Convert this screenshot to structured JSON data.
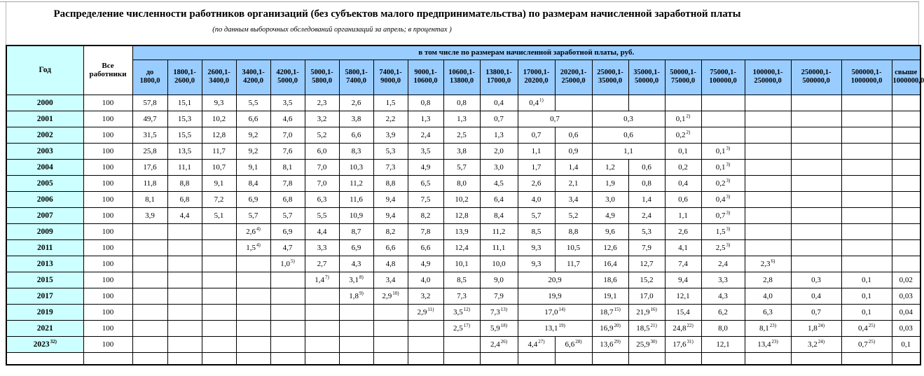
{
  "title": "Распределение численности работников организаций (без субъектов малого предпринимательства) по размерам начисленной заработной платы",
  "subtitle": "(по данным выборочных обследований организаций за апрель; в процентах )",
  "table": {
    "year_header": "Год",
    "all_workers_header": "Все\nработники",
    "group_header": "в том числе по размерам начисленной заработной платы, руб.",
    "wage_columns": [
      "до\n1800,0",
      "1800,1-\n2600,0",
      "2600,1-\n3400,0",
      "3400,1-\n4200,0",
      "4200,1-\n5000,0",
      "5000,1-\n5800,0",
      "5800,1-\n7400,0",
      "7400,1-\n9000,0",
      "9000,1-\n10600,0",
      "10600,1-\n13800,0",
      "13800,1-\n17000,0",
      "17000,1-\n20200,0",
      "20200,1-\n25000,0",
      "25000,1-\n35000,0",
      "35000,1-\n50000,0",
      "50000,1-\n75000,0",
      "75000,1-\n100000,0",
      "100000,1-\n250000,0",
      "250000,1-\n500000,0",
      "500000,1-\n1000000,0",
      "свыше\n1000000,0"
    ],
    "rows": [
      {
        "year": "2000",
        "all": "100",
        "cells": [
          "57,8",
          "15,1",
          "9,3",
          "5,5",
          "3,5",
          "2,3",
          "2,6",
          "1,5",
          "0,8",
          "0,8",
          "0,4",
          {
            "v": "0,4",
            "f": "1)"
          },
          "",
          "",
          "",
          "",
          "",
          "",
          "",
          "",
          ""
        ]
      },
      {
        "year": "2001",
        "all": "100",
        "cells": [
          "49,7",
          "15,3",
          "10,2",
          "6,6",
          "4,6",
          "3,2",
          "3,8",
          "2,2",
          "1,3",
          "1,3",
          "0,7",
          {
            "v": "0,7",
            "span": 2
          },
          {
            "v": "0,3",
            "span": 2
          },
          {
            "v": "0,1",
            "f": "2)"
          },
          "",
          "",
          "",
          "",
          ""
        ]
      },
      {
        "year": "2002",
        "all": "100",
        "cells": [
          "31,5",
          "15,5",
          "12,8",
          "9,2",
          "7,0",
          "5,2",
          "6,6",
          "3,9",
          "2,4",
          "2,5",
          "1,3",
          "0,7",
          "0,6",
          {
            "v": "0,6",
            "span": 2
          },
          {
            "v": "0,2",
            "f": "2)"
          },
          "",
          "",
          "",
          "",
          ""
        ]
      },
      {
        "year": "2003",
        "all": "100",
        "cells": [
          "25,8",
          "13,5",
          "11,7",
          "9,2",
          "7,6",
          "6,0",
          "8,3",
          "5,3",
          "3,5",
          "3,8",
          "2,0",
          "1,1",
          "0,9",
          {
            "v": "1,1",
            "span": 2
          },
          "0,1",
          {
            "v": "0,1",
            "f": "3)"
          },
          "",
          "",
          "",
          ""
        ]
      },
      {
        "year": "2004",
        "all": "100",
        "cells": [
          "17,6",
          "11,1",
          "10,7",
          "9,1",
          "8,1",
          "7,0",
          "10,3",
          "7,3",
          "4,9",
          "5,7",
          "3,0",
          "1,7",
          "1,4",
          "1,2",
          "0,6",
          "0,2",
          {
            "v": "0,1",
            "f": "3)"
          },
          "",
          "",
          "",
          ""
        ]
      },
      {
        "year": "2005",
        "all": "100",
        "cells": [
          "11,8",
          "8,8",
          "9,1",
          "8,4",
          "7,8",
          "7,0",
          "11,2",
          "8,8",
          "6,5",
          "8,0",
          "4,5",
          "2,6",
          "2,1",
          "1,9",
          "0,8",
          "0,4",
          {
            "v": "0,2",
            "f": "3)"
          },
          "",
          "",
          "",
          ""
        ]
      },
      {
        "year": "2006",
        "all": "100",
        "cells": [
          "8,1",
          "6,8",
          "7,2",
          "6,9",
          "6,8",
          "6,3",
          "11,6",
          "9,4",
          "7,5",
          "10,2",
          "6,4",
          "4,0",
          "3,4",
          "3,0",
          "1,4",
          "0,6",
          {
            "v": "0,4",
            "f": "3)"
          },
          "",
          "",
          "",
          ""
        ]
      },
      {
        "year": "2007",
        "all": "100",
        "cells": [
          "3,9",
          "4,4",
          "5,1",
          "5,7",
          "5,7",
          "5,5",
          "10,9",
          "9,4",
          "8,2",
          "12,8",
          "8,4",
          "5,7",
          "5,2",
          "4,9",
          "2,4",
          "1,1",
          {
            "v": "0,7",
            "f": "3)"
          },
          "",
          "",
          "",
          ""
        ]
      },
      {
        "year": "2009",
        "all": "100",
        "cells": [
          "",
          "",
          "",
          {
            "v": "2,6",
            "f": "4)"
          },
          "6,9",
          "4,4",
          "8,7",
          "8,2",
          "7,8",
          "13,9",
          "11,2",
          "8,5",
          "8,8",
          "9,6",
          "5,3",
          "2,6",
          {
            "v": "1,5",
            "f": "3)"
          },
          "",
          "",
          "",
          ""
        ]
      },
      {
        "year": "2011",
        "all": "100",
        "cells": [
          "",
          "",
          "",
          {
            "v": "1,5",
            "f": "4)"
          },
          "4,7",
          "3,3",
          "6,9",
          "6,6",
          "6,6",
          "12,4",
          "11,1",
          "9,3",
          "10,5",
          "12,6",
          "7,9",
          "4,1",
          {
            "v": "2,5",
            "f": "3)"
          },
          "",
          "",
          "",
          ""
        ]
      },
      {
        "year": "2013",
        "all": "100",
        "cells": [
          "",
          "",
          "",
          "",
          {
            "v": "1,0",
            "f": "5)"
          },
          "2,7",
          "4,3",
          "4,8",
          "4,9",
          "10,1",
          "10,0",
          "9,3",
          "11,7",
          "16,4",
          "12,7",
          "7,4",
          "2,4",
          {
            "v": "2,3",
            "f": "6)"
          },
          "",
          "",
          ""
        ]
      },
      {
        "year": "2015",
        "all": "100",
        "cells": [
          "",
          "",
          "",
          "",
          "",
          {
            "v": "1,4",
            "f": "7)"
          },
          {
            "v": "3,1",
            "f": "8)"
          },
          "3,4",
          "4,0",
          "8,5",
          "9,0",
          {
            "v": "20,9",
            "span": 2
          },
          "18,6",
          "15,2",
          "9,4",
          "3,3",
          "2,8",
          "0,3",
          "0,1",
          "0,02"
        ]
      },
      {
        "year": "2017",
        "all": "100",
        "cells": [
          "",
          "",
          "",
          "",
          "",
          "",
          {
            "v": "1,8",
            "f": "9)"
          },
          {
            "v": "2,9",
            "f": "10)"
          },
          "3,2",
          "7,3",
          "7,9",
          {
            "v": "19,9",
            "span": 2
          },
          "19,1",
          "17,0",
          "12,1",
          "4,3",
          "4,0",
          "0,4",
          "0,1",
          "0,03"
        ]
      },
      {
        "year": "2019",
        "all": "100",
        "cells": [
          "",
          "",
          "",
          "",
          "",
          "",
          "",
          "",
          {
            "v": "2,9",
            "f": "11)"
          },
          {
            "v": "3,5",
            "f": "12)"
          },
          {
            "v": "7,3",
            "f": "13)"
          },
          {
            "v": "17,0",
            "f": "14)",
            "span": 2
          },
          {
            "v": "18,7",
            "f": "15)"
          },
          {
            "v": "21,9",
            "f": "16)"
          },
          "15,4",
          "6,2",
          "6,3",
          "0,7",
          "0,1",
          "0,04"
        ]
      },
      {
        "year": "2021",
        "all": "100",
        "cells": [
          "",
          "",
          "",
          "",
          "",
          "",
          "",
          "",
          "",
          {
            "v": "2,5",
            "f": "17)"
          },
          {
            "v": "5,9",
            "f": "18)"
          },
          {
            "v": "13,1",
            "f": "19)",
            "span": 2
          },
          {
            "v": "16,9",
            "f": "20)"
          },
          {
            "v": "18,5",
            "f": "21)"
          },
          {
            "v": "24,8",
            "f": "22)"
          },
          "8,0",
          {
            "v": "8,1",
            "f": "23)"
          },
          {
            "v": "1,8",
            "f": "24)"
          },
          {
            "v": "0,4",
            "f": "25)"
          },
          "0,03"
        ]
      },
      {
        "year": {
          "v": "2023",
          "f": "32)"
        },
        "all": "100",
        "cells": [
          "",
          "",
          "",
          "",
          "",
          "",
          "",
          "",
          "",
          "",
          {
            "v": "2,4",
            "f": "26)"
          },
          {
            "v": "4,4",
            "f": "27)"
          },
          {
            "v": "6,6",
            "f": "28)"
          },
          {
            "v": "13,6",
            "f": "29)"
          },
          {
            "v": "25,9",
            "f": "30)"
          },
          {
            "v": "17,6",
            "f": "31)"
          },
          "12,1",
          {
            "v": "13,4",
            "f": "23)"
          },
          {
            "v": "3,2",
            "f": "24)"
          },
          {
            "v": "0,7",
            "f": "25)"
          },
          "0,1"
        ]
      }
    ]
  },
  "colors": {
    "header_blue": "#99CCFF",
    "year_cyan": "#CCFFFF",
    "border": "#000000"
  }
}
